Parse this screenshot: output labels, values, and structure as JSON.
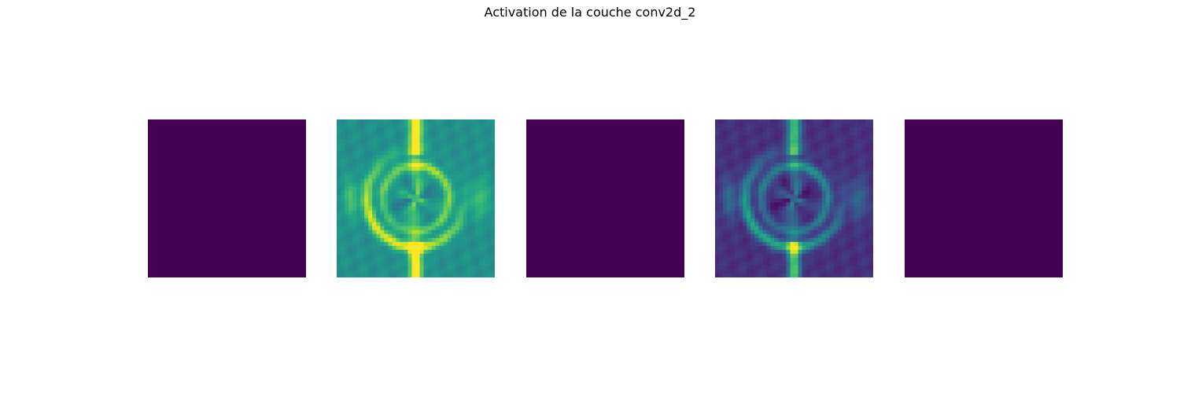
{
  "chart_data": {
    "type": "heatmap",
    "title": "Activation de la couche conv2d_2",
    "colormap": "viridis",
    "colors": {
      "viridis_dark": "#440154",
      "viridis_mid": "#21918c",
      "viridis_yellow": "#fde725"
    },
    "panels": [
      {
        "filter_index": 0,
        "pattern": "uniform",
        "background_level": 0.0
      },
      {
        "filter_index": 1,
        "pattern": "rings",
        "background_level": 0.5
      },
      {
        "filter_index": 2,
        "pattern": "uniform",
        "background_level": 0.0
      },
      {
        "filter_index": 3,
        "pattern": "rings",
        "background_level": 0.14
      },
      {
        "filter_index": 4,
        "pattern": "uniform",
        "background_level": 0.0
      }
    ],
    "axes_visible": false
  }
}
